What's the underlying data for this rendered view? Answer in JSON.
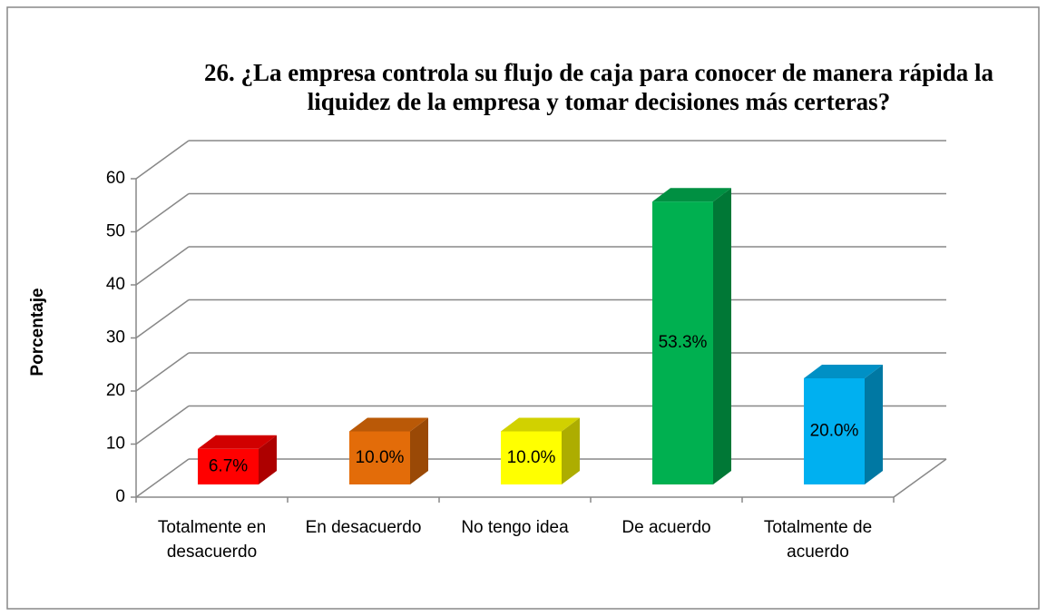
{
  "chart_data": {
    "type": "bar3d",
    "title": "26. ¿La empresa controla su flujo de caja para conocer de manera rápida la liquidez de la empresa y tomar decisiones más certeras?",
    "y_label": "Porcentaje",
    "categories": [
      "Totalmente en desacuerdo",
      "En desacuerdo",
      "No tengo idea",
      "De acuerdo",
      "Totalmente de acuerdo"
    ],
    "values": [
      6.7,
      10.0,
      10.0,
      53.3,
      20.0
    ],
    "value_labels": [
      "6.7%",
      "10.0%",
      "10.0%",
      "53.3%",
      "20.0%"
    ],
    "colors": [
      "#ff0000",
      "#e36c09",
      "#ffff00",
      "#00b050",
      "#00b0f0"
    ],
    "ylim": [
      0,
      60
    ],
    "yticks": [
      0,
      10,
      20,
      30,
      40,
      50,
      60
    ],
    "grid": true
  }
}
